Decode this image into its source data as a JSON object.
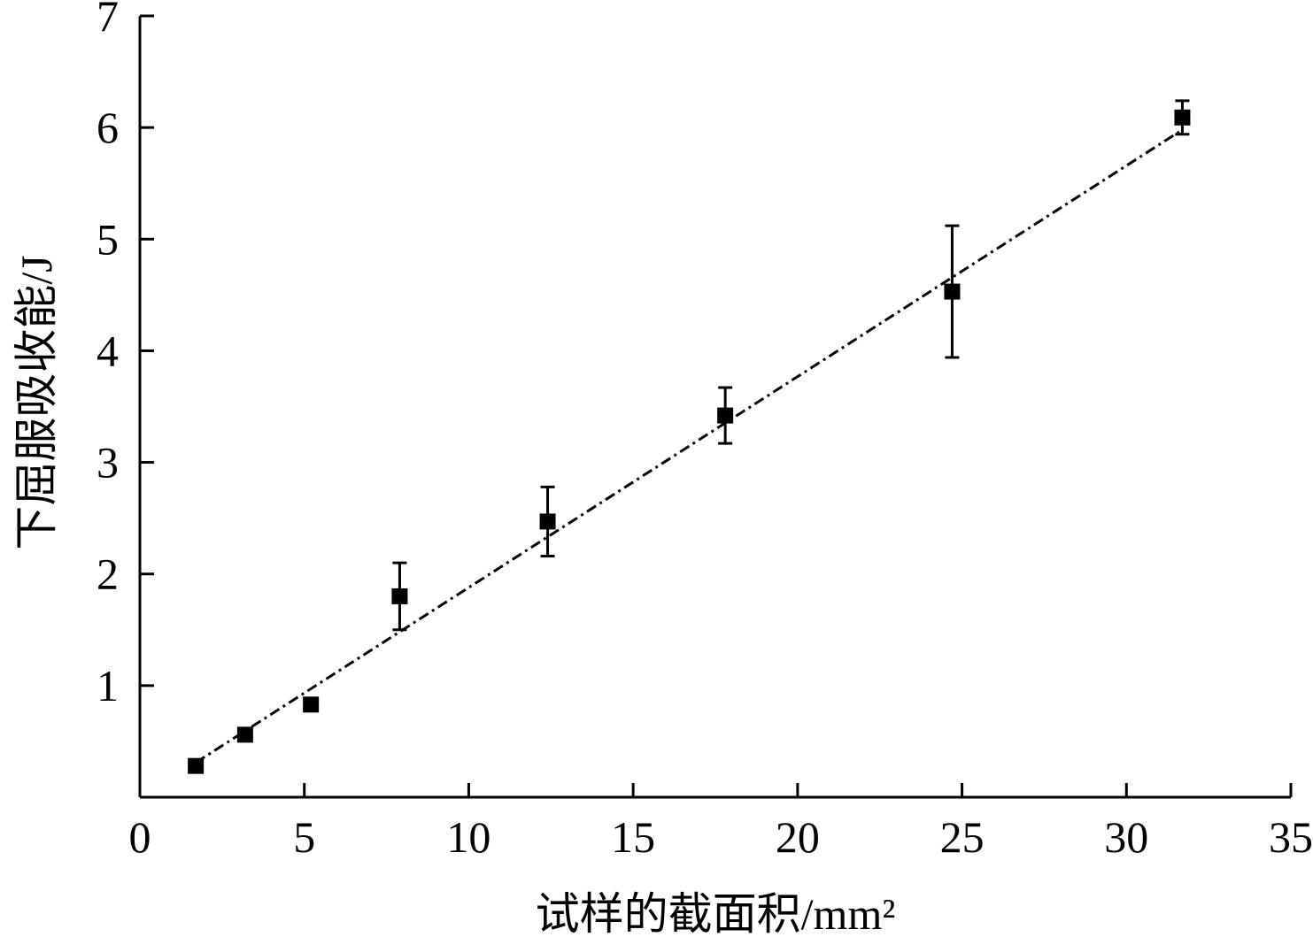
{
  "chart_data": {
    "type": "scatter",
    "xlabel": "试样的截面积/mm²",
    "ylabel": "下屈服吸收能/J",
    "xlim": [
      0,
      35
    ],
    "ylim": [
      0,
      7
    ],
    "x_ticks": [
      0,
      5,
      10,
      15,
      20,
      25,
      30,
      35
    ],
    "y_ticks": [
      1,
      2,
      3,
      4,
      5,
      6,
      7
    ],
    "grid": false,
    "legend": "none",
    "series": [
      {
        "marker": "square",
        "color": "#000000",
        "points": [
          {
            "x": 1.7,
            "y": 0.28
          },
          {
            "x": 3.2,
            "y": 0.56
          },
          {
            "x": 5.2,
            "y": 0.83
          },
          {
            "x": 7.9,
            "y": 1.8,
            "err": 0.3
          },
          {
            "x": 12.4,
            "y": 2.47,
            "err": 0.31
          },
          {
            "x": 17.8,
            "y": 3.42,
            "err": 0.25
          },
          {
            "x": 24.7,
            "y": 4.53,
            "err": 0.59
          },
          {
            "x": 31.7,
            "y": 6.09,
            "err": 0.15
          }
        ]
      }
    ],
    "fit_line": {
      "style": "dash-dot",
      "color": "#000000",
      "start": {
        "x": 1.7,
        "y": 0.31
      },
      "end": {
        "x": 31.7,
        "y": 5.98
      }
    }
  }
}
